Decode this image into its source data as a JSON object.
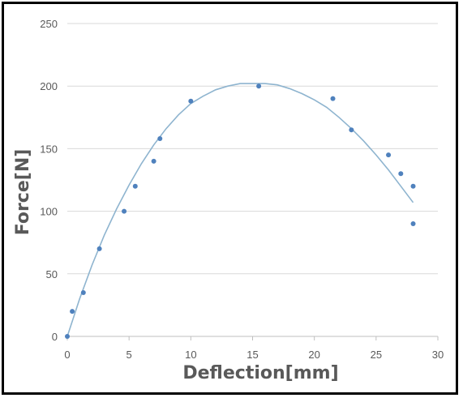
{
  "chart_data": {
    "type": "scatter",
    "xlabel": "Deflection[mm]",
    "ylabel": "Force[N]",
    "xlim": [
      0,
      30
    ],
    "ylim": [
      0,
      250
    ],
    "x_ticks": [
      0,
      5,
      10,
      15,
      20,
      25,
      30
    ],
    "y_ticks": [
      0,
      50,
      100,
      150,
      200,
      250
    ],
    "grid": "horizontal",
    "legend": "none",
    "colors": {
      "marker": "#4f81bd",
      "trend": "#8eb4cf",
      "grid": "#d9d9d9",
      "text": "#595959"
    },
    "series": [
      {
        "points": [
          [
            0,
            0
          ],
          [
            0.4,
            20
          ],
          [
            1.3,
            35
          ],
          [
            2.6,
            70
          ],
          [
            4.6,
            100
          ],
          [
            5.5,
            120
          ],
          [
            7.0,
            140
          ],
          [
            7.5,
            158
          ],
          [
            10.0,
            188
          ],
          [
            15.5,
            200
          ],
          [
            21.5,
            190
          ],
          [
            23.0,
            165
          ],
          [
            26.0,
            145
          ],
          [
            27.0,
            130
          ],
          [
            28.0,
            120
          ],
          [
            28.0,
            90
          ]
        ]
      }
    ],
    "trendline": {
      "type": "polynomial",
      "points": [
        [
          0,
          0
        ],
        [
          1,
          30
        ],
        [
          2,
          57
        ],
        [
          3,
          81
        ],
        [
          4,
          102
        ],
        [
          5,
          121
        ],
        [
          6,
          138
        ],
        [
          7,
          153
        ],
        [
          8,
          166
        ],
        [
          9,
          177
        ],
        [
          10,
          186
        ],
        [
          11,
          192
        ],
        [
          12,
          197
        ],
        [
          13,
          200
        ],
        [
          14,
          202
        ],
        [
          15,
          202
        ],
        [
          16,
          202
        ],
        [
          17,
          201
        ],
        [
          18,
          198
        ],
        [
          19,
          194
        ],
        [
          20,
          189
        ],
        [
          21,
          183
        ],
        [
          22,
          175
        ],
        [
          23,
          166
        ],
        [
          24,
          156
        ],
        [
          25,
          145
        ],
        [
          26,
          133
        ],
        [
          27,
          120
        ],
        [
          28,
          107
        ]
      ]
    }
  }
}
